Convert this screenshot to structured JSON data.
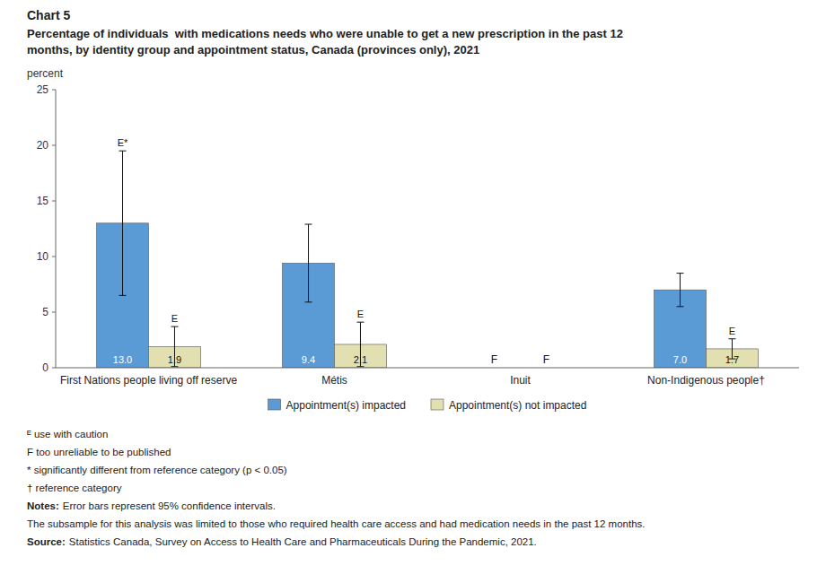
{
  "chart_data": {
    "type": "bar",
    "label": "Chart 5",
    "title": [
      "Percentage of individuals  with medications needs who were unable to get a new prescription in the past 12",
      "months, by identity group and appointment status, Canada (provinces only), 2021"
    ],
    "ylabel": "percent",
    "categories": [
      "First Nations people living off reserve",
      "Métis",
      "Inuit",
      "Non-Indigenous people†"
    ],
    "series": [
      {
        "name": "Appointment(s) impacted",
        "color": "#5b9bd5",
        "values": [
          13.0,
          9.4,
          null,
          7.0
        ],
        "value_labels": [
          "13.0",
          "9.4",
          "F",
          "7.0"
        ],
        "errors": [
          6.5,
          3.5,
          null,
          1.5
        ],
        "annotations": [
          "E*",
          null,
          null,
          null
        ]
      },
      {
        "name": "Appointment(s) not impacted",
        "color": "#e2dfb0",
        "values": [
          1.9,
          2.1,
          null,
          1.7
        ],
        "value_labels": [
          "1.9",
          "2.1",
          "F",
          "1.7"
        ],
        "errors": [
          1.8,
          2.0,
          null,
          0.9
        ],
        "annotations": [
          "E",
          "E",
          null,
          "E"
        ]
      }
    ],
    "ylim": [
      0,
      25
    ],
    "yticks": [
      0,
      5,
      10,
      15,
      20,
      25
    ],
    "grid": false,
    "legend": "bottom",
    "data_labels": true,
    "footnotes": [
      "ᴱ use with caution",
      "F too unreliable to be published",
      "* significantly different from reference category (p < 0.05)",
      "† reference category",
      {
        "prefix": "Notes:",
        "text": "Error bars represent 95% confidence intervals."
      },
      "The subsample for this analysis was limited to those who required health care access and had medication needs in the past 12 months.",
      {
        "prefix": "Source:",
        "text": "Statistics Canada, Survey on Access to Health Care and Pharmaceuticals During the Pandemic, 2021."
      }
    ]
  }
}
